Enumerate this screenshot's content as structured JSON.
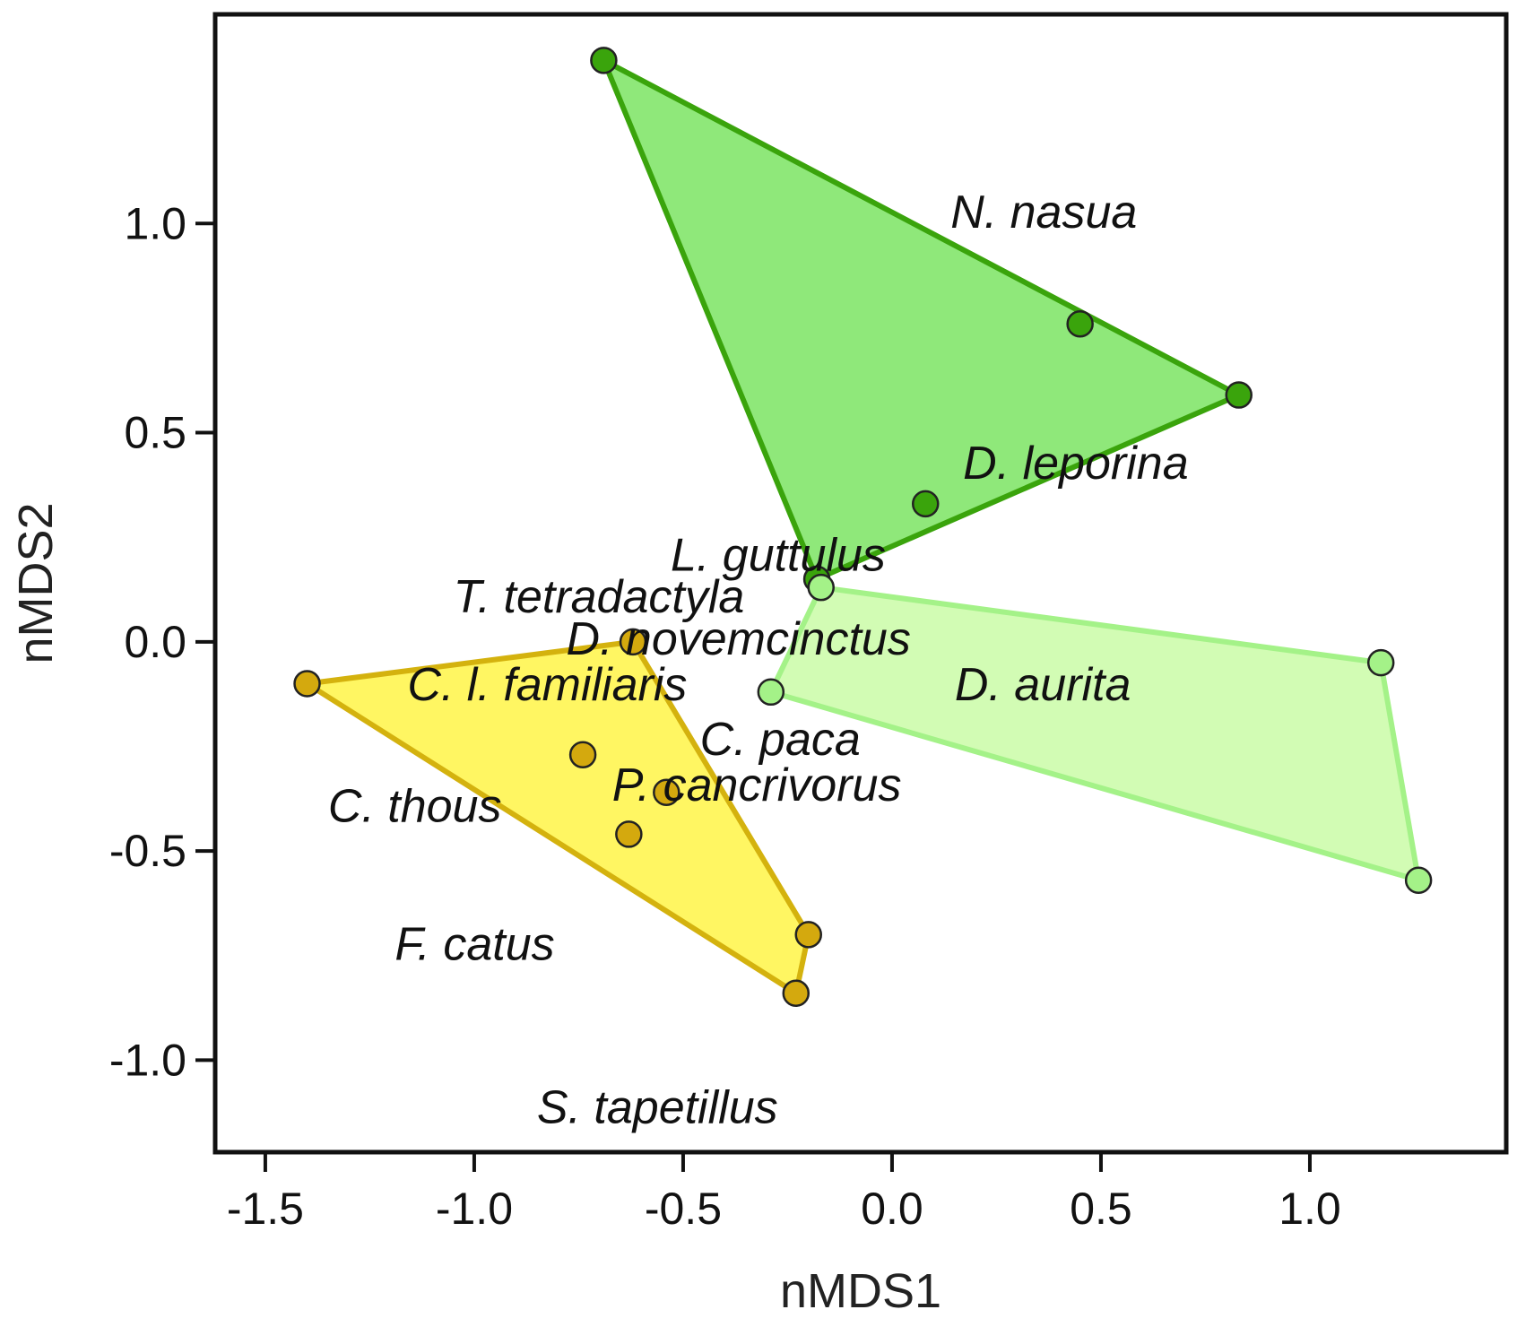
{
  "chart_data": {
    "type": "scatter",
    "xlabel": "nMDS1",
    "ylabel": "nMDS2",
    "xlim": [
      -1.62,
      1.47
    ],
    "ylim": [
      -1.22,
      1.5
    ],
    "xticks": [
      -1.5,
      -1.0,
      -0.5,
      0.0,
      0.5,
      1.0
    ],
    "xtick_labels": [
      "-1.5",
      "-1.0",
      "-0.5",
      "0.0",
      "0.5",
      "1.0"
    ],
    "yticks": [
      -1.0,
      -0.5,
      0.0,
      0.5,
      1.0
    ],
    "ytick_labels": [
      "-1.0",
      "-0.5",
      "0.0",
      "0.5",
      "1.0"
    ],
    "grid": false,
    "legend": "none",
    "groups": [
      {
        "fill": "#8fe87a",
        "stroke": "#3aa40c",
        "point_color": "#3aa40c",
        "points": [
          [
            -0.69,
            1.39
          ],
          [
            0.45,
            0.76
          ],
          [
            0.83,
            0.59
          ],
          [
            0.08,
            0.33
          ],
          [
            -0.18,
            0.15
          ]
        ],
        "hull": [
          [
            -0.69,
            1.39
          ],
          [
            0.83,
            0.59
          ],
          [
            -0.18,
            0.15
          ]
        ]
      },
      {
        "fill": "#d2fcb4",
        "stroke": "#a4f288",
        "point_color": "#a4f288",
        "points": [
          [
            -0.17,
            0.13
          ],
          [
            1.17,
            -0.05
          ],
          [
            1.26,
            -0.57
          ],
          [
            -0.29,
            -0.12
          ]
        ],
        "hull": [
          [
            -0.17,
            0.13
          ],
          [
            1.17,
            -0.05
          ],
          [
            1.26,
            -0.57
          ],
          [
            -0.29,
            -0.12
          ]
        ]
      },
      {
        "fill": "#fff662",
        "stroke": "#d4b20e",
        "point_color": "#d4a90e",
        "points": [
          [
            -1.4,
            -0.1
          ],
          [
            -0.62,
            0.0
          ],
          [
            -0.74,
            -0.27
          ],
          [
            -0.54,
            -0.36
          ],
          [
            -0.63,
            -0.46
          ],
          [
            -0.2,
            -0.7
          ],
          [
            -0.23,
            -0.84
          ]
        ],
        "hull": [
          [
            -1.4,
            -0.1
          ],
          [
            -0.62,
            0.0
          ],
          [
            -0.2,
            -0.7
          ],
          [
            -0.23,
            -0.84
          ]
        ]
      }
    ],
    "labels": [
      {
        "text": "N. nasua",
        "x": 0.14,
        "y": 0.99
      },
      {
        "text": "D. leporina",
        "x": 0.17,
        "y": 0.39
      },
      {
        "text": "L. guttulus",
        "x": -0.53,
        "y": 0.17
      },
      {
        "text": "T. tetradactyla",
        "x": -1.05,
        "y": 0.07
      },
      {
        "text": "D. novemcinctus",
        "x": -0.78,
        "y": -0.03
      },
      {
        "text": "D. aurita",
        "x": 0.15,
        "y": -0.14
      },
      {
        "text": "C. l. familiaris",
        "x": -1.16,
        "y": -0.14
      },
      {
        "text": "C. paca",
        "x": -0.46,
        "y": -0.27
      },
      {
        "text": "P. cancrivorus",
        "x": -0.67,
        "y": -0.38
      },
      {
        "text": "C. thous",
        "x": -1.35,
        "y": -0.43
      },
      {
        "text": "F. catus",
        "x": -1.19,
        "y": -0.76
      },
      {
        "text": "S. tapetillus",
        "x": -0.85,
        "y": -1.15
      }
    ]
  }
}
